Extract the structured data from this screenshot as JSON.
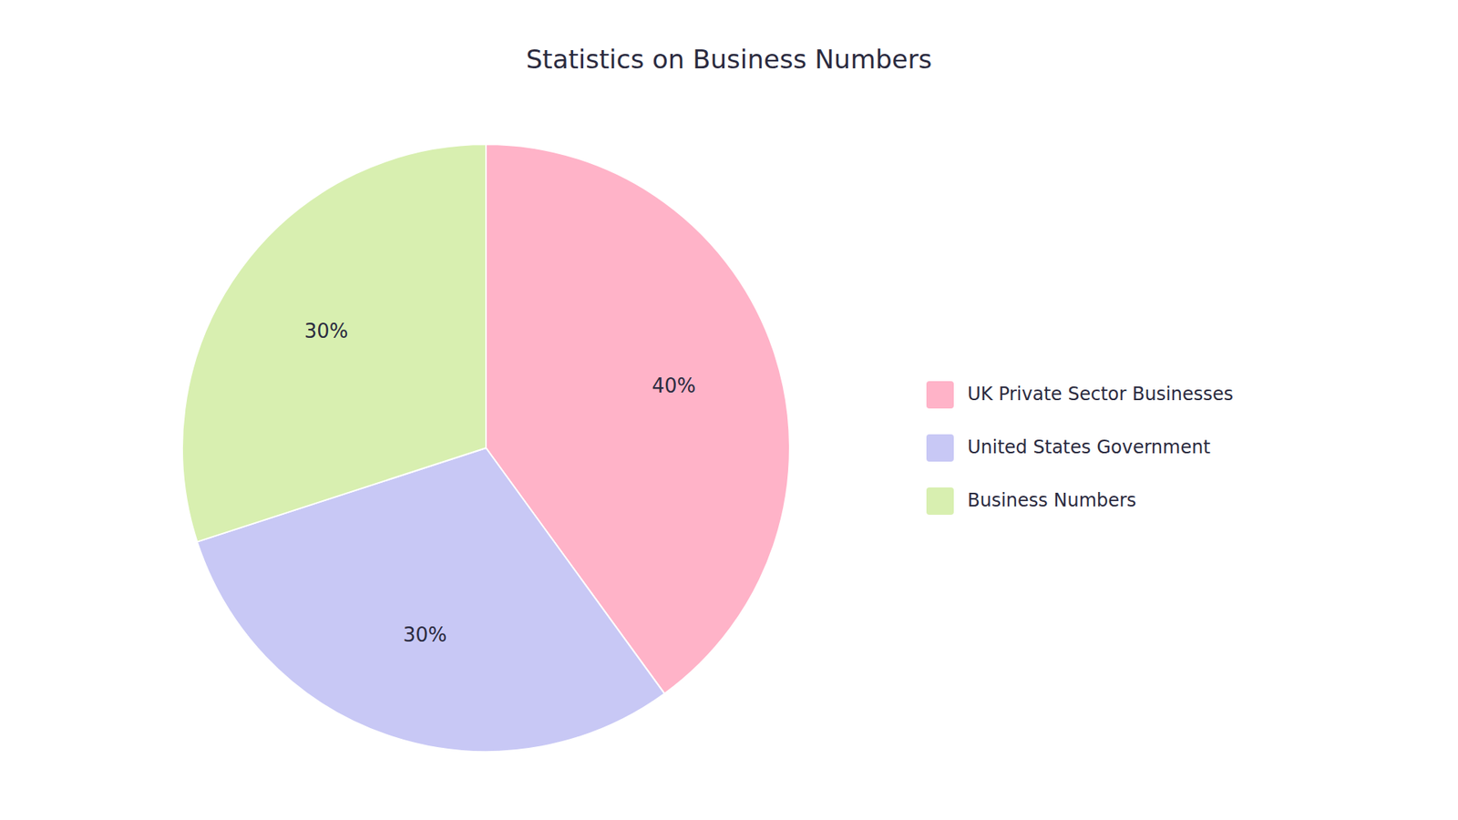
{
  "chart_data": {
    "type": "pie",
    "title": "Statistics on Business Numbers",
    "categories": [
      "UK Private Sector Businesses",
      "United States Government",
      "Business Numbers"
    ],
    "values": [
      40,
      30,
      30
    ],
    "value_labels": [
      "40%",
      "30%",
      "30%"
    ],
    "colors": [
      "#FFB3C8",
      "#C8C8F5",
      "#D8EFB0"
    ],
    "data_labels": true,
    "legend": "right"
  }
}
